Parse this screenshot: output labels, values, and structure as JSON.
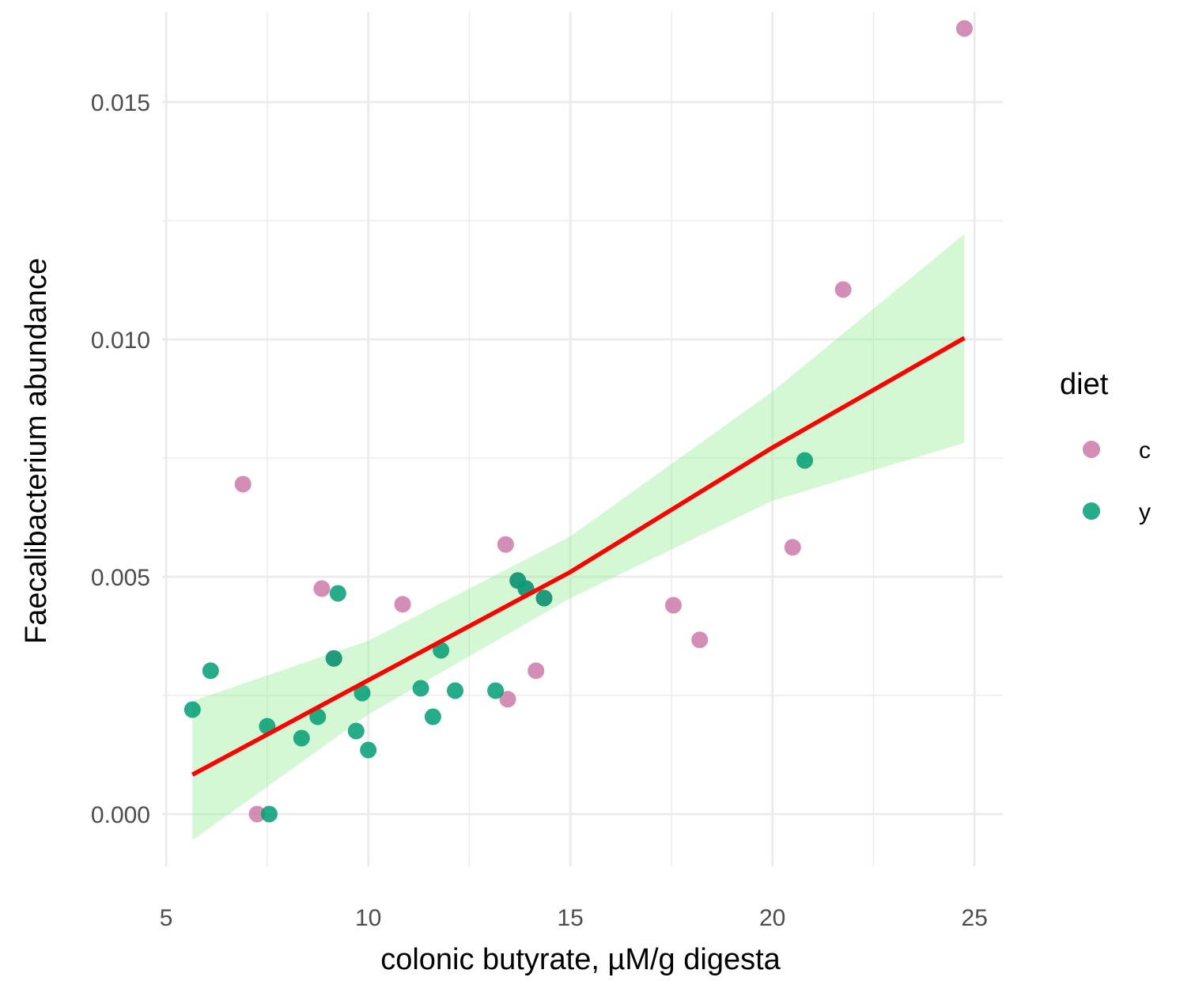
{
  "chart_data": {
    "type": "scatter",
    "title": "",
    "xlabel": "colonic butyrate, µM/g digesta",
    "ylabel": "Faecalibacterium abundance",
    "xlim": [
      4.9,
      25.7
    ],
    "ylim": [
      -0.0011,
      0.0169
    ],
    "x_ticks": [
      5,
      10,
      15,
      20,
      25
    ],
    "x_tick_labels": [
      "5",
      "10",
      "15",
      "20",
      "25"
    ],
    "x_minor_ticks": [
      7.5,
      12.5,
      17.5,
      22.5
    ],
    "y_ticks": [
      0.0,
      0.005,
      0.01,
      0.015
    ],
    "y_tick_labels": [
      "0.000",
      "0.005",
      "0.010",
      "0.015"
    ],
    "y_minor_ticks": [
      0.0025,
      0.0075,
      0.0125
    ],
    "grid": true,
    "legend": {
      "title": "diet",
      "position": "right",
      "entries": [
        {
          "label": "c",
          "color": "#CC79A7"
        },
        {
          "label": "y",
          "color": "#009E73"
        }
      ]
    },
    "colors": {
      "c": "#CC79A7",
      "y": "#009E73",
      "fit_line": "#FF0000",
      "confidence_band": "#90EE90",
      "grid": "#EBEBEB"
    },
    "series": [
      {
        "name": "c",
        "points": [
          {
            "x": 6.9,
            "y": 0.00695
          },
          {
            "x": 7.25,
            "y": 0.0
          },
          {
            "x": 8.85,
            "y": 0.00475
          },
          {
            "x": 9.15,
            "y": 0.00328
          },
          {
            "x": 10.85,
            "y": 0.00442
          },
          {
            "x": 13.4,
            "y": 0.00568
          },
          {
            "x": 13.45,
            "y": 0.00242
          },
          {
            "x": 13.7,
            "y": 0.00492
          },
          {
            "x": 13.9,
            "y": 0.00475
          },
          {
            "x": 14.15,
            "y": 0.00302
          },
          {
            "x": 14.35,
            "y": 0.00455
          },
          {
            "x": 17.55,
            "y": 0.0044
          },
          {
            "x": 18.2,
            "y": 0.00367
          },
          {
            "x": 20.5,
            "y": 0.00562
          },
          {
            "x": 21.75,
            "y": 0.01105
          },
          {
            "x": 24.75,
            "y": 0.01655
          }
        ]
      },
      {
        "name": "y",
        "points": [
          {
            "x": 5.65,
            "y": 0.0022
          },
          {
            "x": 6.1,
            "y": 0.00302
          },
          {
            "x": 7.5,
            "y": 0.00185
          },
          {
            "x": 7.55,
            "y": 0.0
          },
          {
            "x": 8.35,
            "y": 0.0016
          },
          {
            "x": 8.75,
            "y": 0.00205
          },
          {
            "x": 9.25,
            "y": 0.00465
          },
          {
            "x": 9.7,
            "y": 0.00175
          },
          {
            "x": 9.85,
            "y": 0.00255
          },
          {
            "x": 10.0,
            "y": 0.00135
          },
          {
            "x": 11.3,
            "y": 0.00265
          },
          {
            "x": 11.6,
            "y": 0.00205
          },
          {
            "x": 11.8,
            "y": 0.00345
          },
          {
            "x": 12.15,
            "y": 0.0026
          },
          {
            "x": 13.15,
            "y": 0.0026
          },
          {
            "x": 13.7,
            "y": 0.00492
          },
          {
            "x": 13.9,
            "y": 0.00475
          },
          {
            "x": 14.35,
            "y": 0.00455
          },
          {
            "x": 9.15,
            "y": 0.00328
          },
          {
            "x": 20.8,
            "y": 0.00745
          }
        ]
      }
    ],
    "fit": {
      "x": [
        5.65,
        10,
        15,
        20,
        24.75
      ],
      "y": [
        0.00083,
        0.00282,
        0.0051,
        0.00772,
        0.01003
      ],
      "ci_lower": [
        -0.00055,
        0.0021,
        0.00455,
        0.0066,
        0.00782
      ],
      "ci_upper": [
        0.00238,
        0.00365,
        0.00585,
        0.0089,
        0.01222
      ]
    }
  }
}
